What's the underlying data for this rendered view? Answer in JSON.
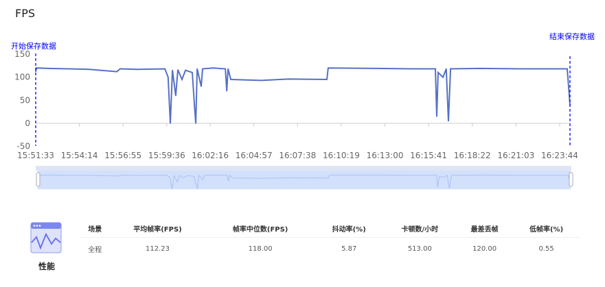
{
  "title": "FPS",
  "chart_data": {
    "type": "line",
    "color": "#5470c6",
    "ylim": [
      -50,
      150
    ],
    "yticks": [
      "150",
      "100",
      "50",
      "0",
      "-50"
    ],
    "xlim": [
      "15:51:33",
      "16:24:22"
    ],
    "xticks": [
      "15:51:33",
      "15:54:14",
      "15:56:55",
      "15:59:36",
      "16:02:16",
      "16:04:57",
      "16:07:38",
      "16:10:19",
      "16:13:00",
      "16:15:41",
      "16:18:22",
      "16:21:03",
      "16:23:44"
    ],
    "markers": [
      {
        "label": "开始保存数据",
        "time": "15:51:33",
        "color": "#0000ff"
      },
      {
        "label": "结束保存数据",
        "time": "16:24:22",
        "color": "#0000ff"
      }
    ],
    "points": [
      [
        "15:51:33",
        112
      ],
      [
        "15:51:36",
        120
      ],
      [
        "15:52:19",
        119
      ],
      [
        "15:53:34",
        118
      ],
      [
        "15:54:50",
        117
      ],
      [
        "15:56:32",
        112
      ],
      [
        "15:56:44",
        118
      ],
      [
        "15:57:48",
        117
      ],
      [
        "15:59:29",
        118
      ],
      [
        "15:59:41",
        100
      ],
      [
        "15:59:49",
        0
      ],
      [
        "15:59:57",
        115
      ],
      [
        "16:00:09",
        60
      ],
      [
        "16:00:17",
        116
      ],
      [
        "16:00:32",
        95
      ],
      [
        "16:00:45",
        115
      ],
      [
        "16:01:10",
        110
      ],
      [
        "16:01:18",
        40
      ],
      [
        "16:01:23",
        0
      ],
      [
        "16:01:28",
        118
      ],
      [
        "16:01:43",
        80
      ],
      [
        "16:01:48",
        118
      ],
      [
        "16:02:26",
        120
      ],
      [
        "16:03:12",
        118
      ],
      [
        "16:03:17",
        70
      ],
      [
        "16:03:22",
        118
      ],
      [
        "16:03:32",
        95
      ],
      [
        "16:05:23",
        93
      ],
      [
        "16:07:04",
        96
      ],
      [
        "16:09:26",
        95
      ],
      [
        "16:09:31",
        120
      ],
      [
        "16:12:33",
        119
      ],
      [
        "16:14:40",
        118
      ],
      [
        "16:16:06",
        118
      ],
      [
        "16:16:11",
        15
      ],
      [
        "16:16:16",
        110
      ],
      [
        "16:16:34",
        100
      ],
      [
        "16:16:46",
        118
      ],
      [
        "16:16:54",
        5
      ],
      [
        "16:17:02",
        118
      ],
      [
        "16:18:53",
        119
      ],
      [
        "16:21:25",
        118
      ],
      [
        "16:24:12",
        118
      ],
      [
        "16:24:22",
        40
      ]
    ]
  },
  "summary": {
    "label": "性能",
    "headers": [
      "场景",
      "平均帧率(FPS)",
      "帧率中位数(FPS)",
      "抖动率(%)",
      "卡顿数/小时",
      "最差丢帧",
      "低帧率(%)"
    ],
    "rows": [
      [
        "全程",
        "112.23",
        "118.00",
        "5.87",
        "513.00",
        "120.00",
        "0.55"
      ]
    ]
  }
}
